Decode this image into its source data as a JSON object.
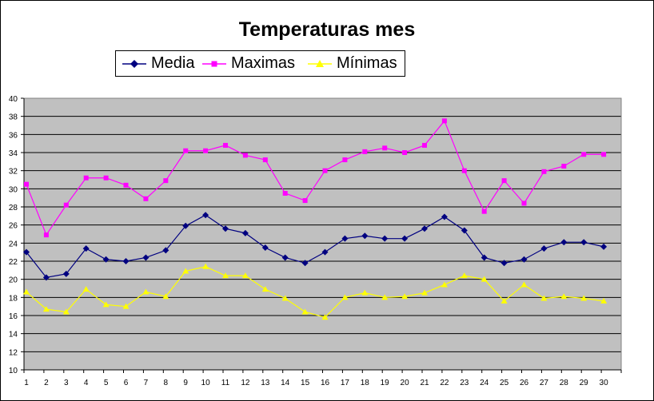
{
  "chart_data": {
    "type": "line",
    "title": "Temperaturas mes",
    "xlabel": "",
    "ylabel": "",
    "categories": [
      "1",
      "2",
      "3",
      "4",
      "5",
      "6",
      "7",
      "8",
      "9",
      "10",
      "11",
      "12",
      "13",
      "14",
      "15",
      "16",
      "17",
      "18",
      "19",
      "20",
      "21",
      "22",
      "23",
      "24",
      "25",
      "26",
      "27",
      "28",
      "29",
      "30"
    ],
    "ylim": [
      10,
      40
    ],
    "yticks": [
      10,
      12,
      14,
      16,
      18,
      20,
      22,
      24,
      26,
      28,
      30,
      32,
      34,
      36,
      38,
      40
    ],
    "grid": "horizontal",
    "plot_background": "#c0c0c0",
    "legend_position": "top",
    "series": [
      {
        "name": "Media",
        "color": "#000080",
        "marker": "diamond",
        "values": [
          23.0,
          20.2,
          20.6,
          23.4,
          22.2,
          22.0,
          22.4,
          23.2,
          25.9,
          27.1,
          25.6,
          25.1,
          23.5,
          22.4,
          21.8,
          23.0,
          24.5,
          24.8,
          24.5,
          24.5,
          25.6,
          26.9,
          25.4,
          22.4,
          21.8,
          22.2,
          23.4,
          24.1,
          24.1,
          23.6
        ]
      },
      {
        "name": "Maximas",
        "color": "#ff00ff",
        "marker": "square",
        "values": [
          30.5,
          24.9,
          28.2,
          31.2,
          31.2,
          30.4,
          28.9,
          30.9,
          34.2,
          34.2,
          34.8,
          33.7,
          33.2,
          29.5,
          28.7,
          32.0,
          33.2,
          34.1,
          34.5,
          34.0,
          34.8,
          37.5,
          32.0,
          27.5,
          30.9,
          28.4,
          31.9,
          32.5,
          33.8,
          33.8
        ]
      },
      {
        "name": "Mínimas",
        "color": "#ffff00",
        "marker": "triangle",
        "values": [
          18.6,
          16.7,
          16.4,
          18.9,
          17.2,
          17.0,
          18.6,
          18.1,
          20.9,
          21.4,
          20.4,
          20.4,
          18.9,
          17.9,
          16.4,
          15.8,
          18.0,
          18.5,
          18.0,
          18.1,
          18.5,
          19.4,
          20.4,
          20.0,
          17.6,
          19.4,
          17.9,
          18.1,
          17.9,
          17.6
        ]
      }
    ]
  }
}
